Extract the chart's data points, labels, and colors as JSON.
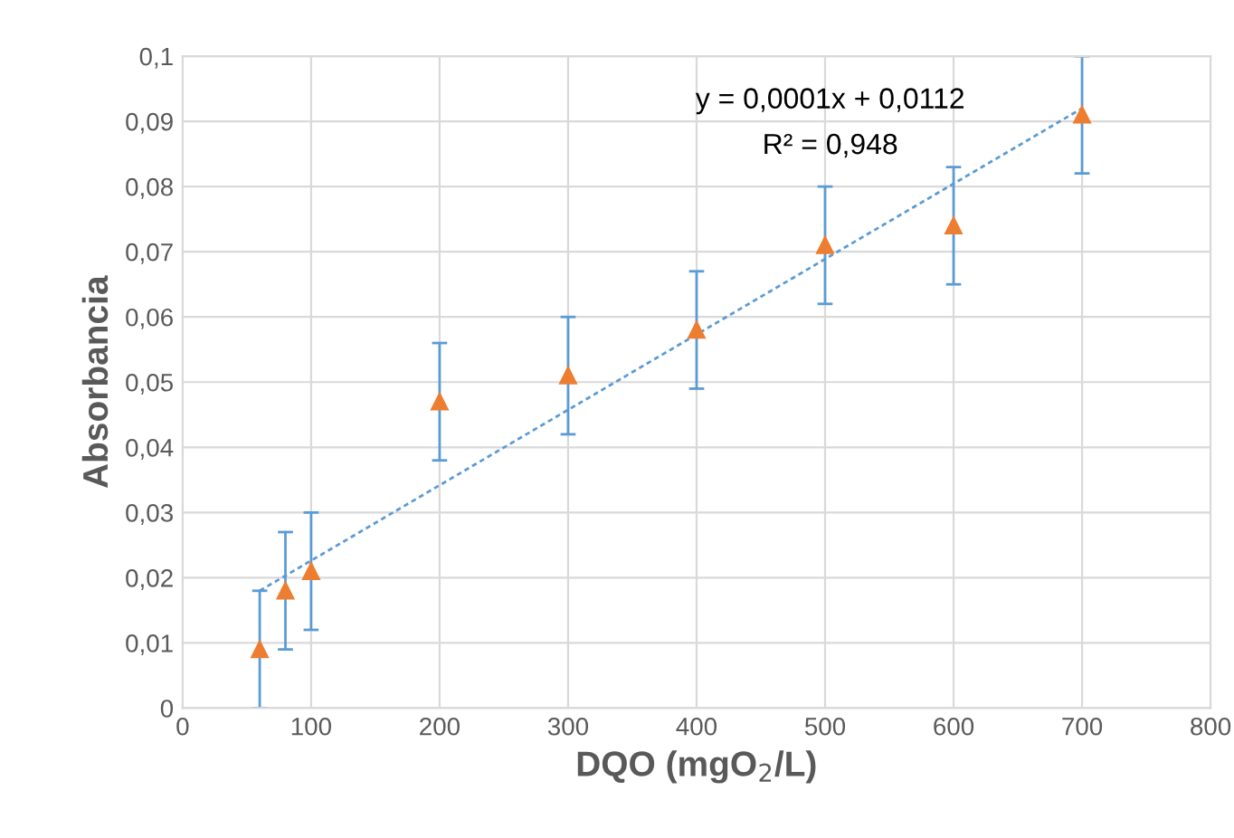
{
  "chart_data": {
    "type": "scatter",
    "xlabel": "DQO (mgO$_{2}$/L)",
    "ylabel": "Absorbancia",
    "annotations": [
      "y = 0,0001x + 0,0112",
      "R² = 0,948"
    ],
    "grid": true,
    "xlim": [
      0,
      800
    ],
    "xticks": [
      0,
      100,
      200,
      300,
      400,
      500,
      600,
      700,
      800
    ],
    "ylim": [
      0,
      0.1
    ],
    "yticks": [
      {
        "value": 0,
        "label": "0"
      },
      {
        "value": 0.01,
        "label": "0,01"
      },
      {
        "value": 0.02,
        "label": "0,02"
      },
      {
        "value": 0.03,
        "label": "0,03"
      },
      {
        "value": 0.04,
        "label": "0,04"
      },
      {
        "value": 0.05,
        "label": "0,05"
      },
      {
        "value": 0.06,
        "label": "0,06"
      },
      {
        "value": 0.07,
        "label": "0,07"
      },
      {
        "value": 0.08,
        "label": "0,08"
      },
      {
        "value": 0.09,
        "label": "0,09"
      },
      {
        "value": 0.1,
        "label": "0,1"
      }
    ],
    "series": [
      {
        "color": "#ed7d31",
        "marker": "triangle",
        "x": [
          60,
          80,
          100,
          200,
          300,
          400,
          500,
          600,
          700
        ],
        "values": [
          0.009,
          0.018,
          0.021,
          0.047,
          0.051,
          0.058,
          0.071,
          0.074,
          0.091
        ],
        "errors": [
          0.009,
          0.009,
          0.009,
          0.009,
          0.009,
          0.009,
          0.009,
          0.009,
          0.009
        ]
      },
      {
        "type": "line",
        "color": "#5b9bd5",
        "line_style": "dotted",
        "x": [
          60,
          700
        ],
        "values": [
          0.018,
          0.092
        ]
      }
    ]
  }
}
